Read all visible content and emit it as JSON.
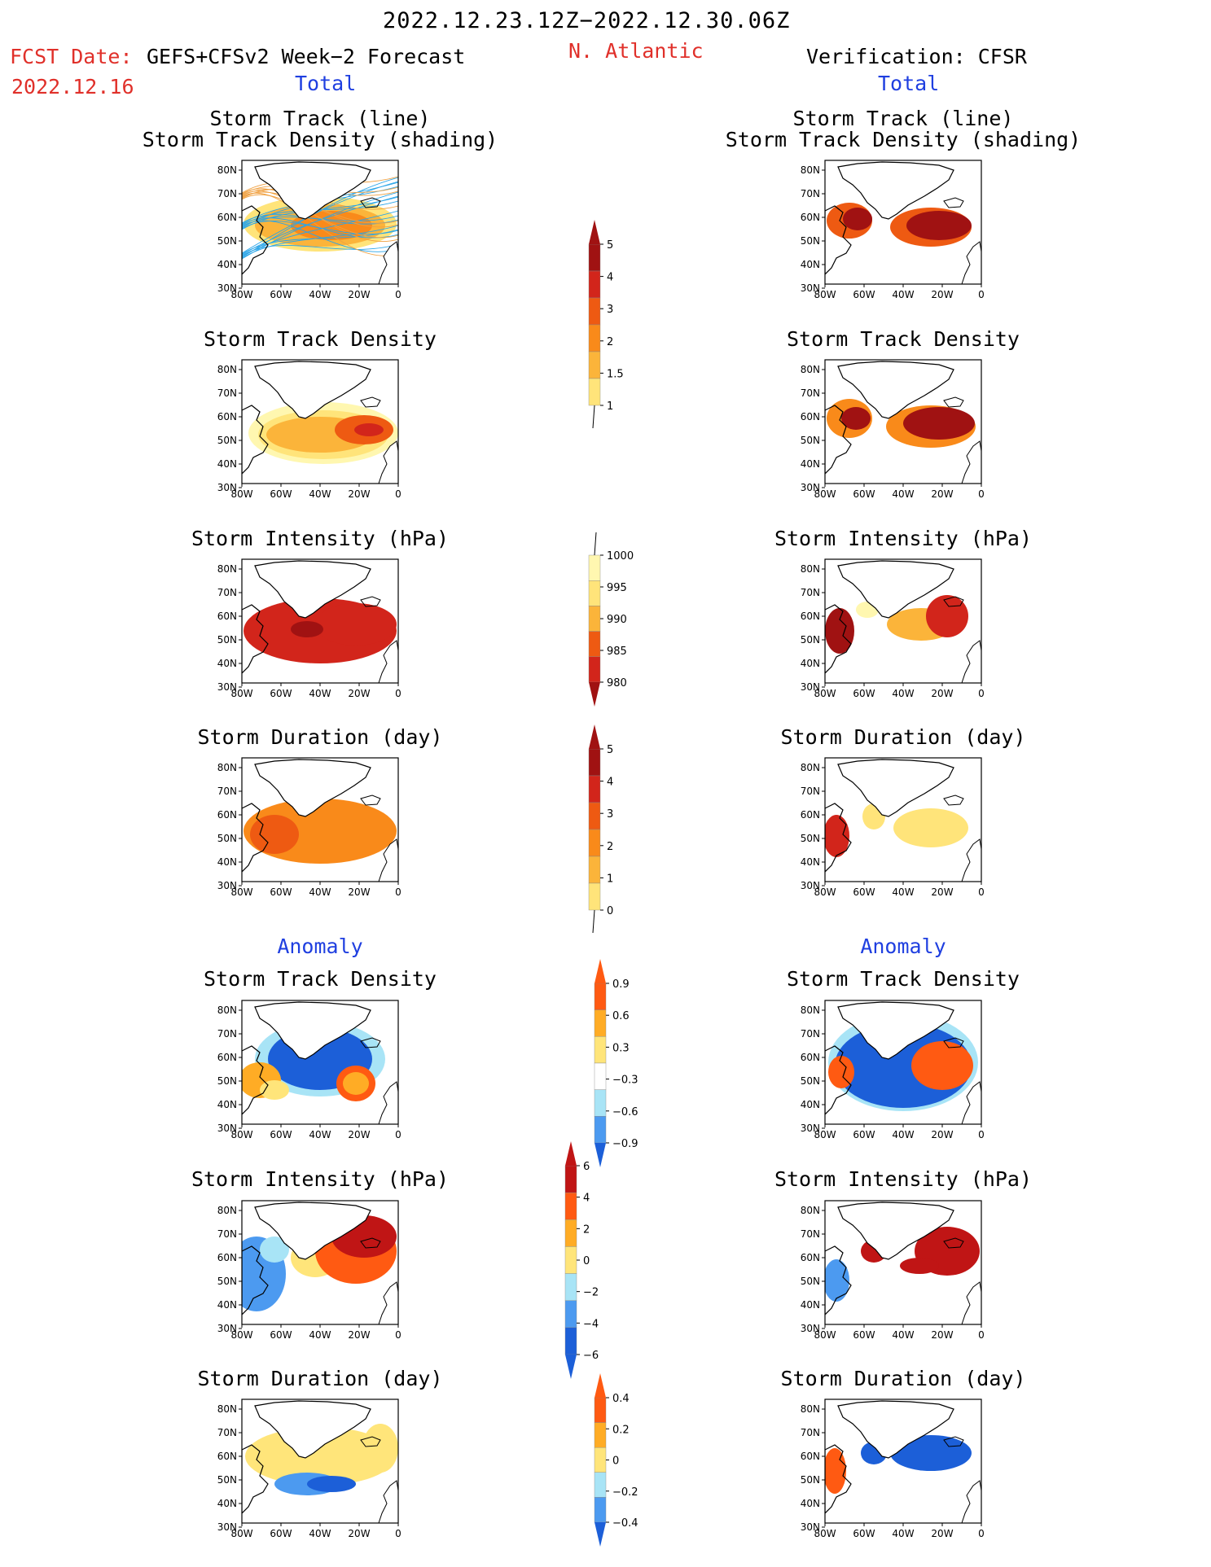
{
  "header": {
    "date_range": "2022.12.23.12Z−2022.12.30.06Z",
    "region": "N. Atlantic",
    "fcst_label": "FCST Date:",
    "fcst_model": "GEFS+CFSv2 Week−2 Forecast",
    "fcst_date": "2022.12.16",
    "verification": "Verification: CFSR",
    "left_total": "Total",
    "right_total": "Total",
    "left_anomaly": "Anomaly",
    "right_anomaly": "Anomaly"
  },
  "map_axes": {
    "lat_ticks": [
      "80N",
      "70N",
      "60N",
      "50N",
      "40N",
      "30N"
    ],
    "lon_ticks": [
      "80W",
      "60W",
      "40W",
      "20W",
      "0"
    ]
  },
  "colors": {
    "total_scale": [
      "#fff7b0",
      "#ffe47a",
      "#fbb43a",
      "#f98a1a",
      "#ee5a12",
      "#d2251b",
      "#a01212"
    ],
    "anomaly_scale": [
      "#1c5fd8",
      "#4c9af0",
      "#a8e4f6",
      "#ffffff",
      "#ffe57a",
      "#ffac25",
      "#ff5a12",
      "#c01515"
    ],
    "track_line": "#2aa5e8"
  },
  "panels": {
    "left_total_track": {
      "title1": "Storm Track (line)",
      "title2": "Storm Track Density (shading)"
    },
    "right_total_track": {
      "title1": "Storm Track (line)",
      "title2": "Storm Track Density (shading)"
    },
    "left_total_density": {
      "title": "Storm Track Density"
    },
    "right_total_density": {
      "title": "Storm Track Density"
    },
    "left_total_intensity": {
      "title": "Storm Intensity (hPa)"
    },
    "right_total_intensity": {
      "title": "Storm Intensity (hPa)"
    },
    "left_total_duration": {
      "title": "Storm Duration (day)"
    },
    "right_total_duration": {
      "title": "Storm Duration (day)"
    },
    "left_anom_density": {
      "title": "Storm Track Density"
    },
    "right_anom_density": {
      "title": "Storm Track Density"
    },
    "left_anom_intensity": {
      "title": "Storm Intensity (hPa)"
    },
    "right_anom_intensity": {
      "title": "Storm Intensity (hPa)"
    },
    "left_anom_duration": {
      "title": "Storm Duration (day)"
    },
    "right_anom_duration": {
      "title": "Storm Duration (day)"
    }
  },
  "chart_data": [
    {
      "type": "heatmap",
      "name": "density_total_colorbar",
      "levels": [
        "1",
        "1.5",
        "2",
        "3",
        "4",
        "5"
      ]
    },
    {
      "type": "heatmap",
      "name": "intensity_total_colorbar",
      "levels": [
        "1000",
        "995",
        "990",
        "985",
        "980"
      ]
    },
    {
      "type": "heatmap",
      "name": "duration_total_colorbar",
      "levels": [
        "0",
        "1",
        "2",
        "3",
        "4",
        "5"
      ]
    },
    {
      "type": "heatmap",
      "name": "density_anomaly_colorbar",
      "levels": [
        "0.9",
        "0.6",
        "0.3",
        "−0.3",
        "−0.6",
        "−0.9"
      ]
    },
    {
      "type": "heatmap",
      "name": "intensity_anomaly_colorbar",
      "levels": [
        "6",
        "4",
        "2",
        "0",
        "−2",
        "−4",
        "−6"
      ]
    },
    {
      "type": "heatmap",
      "name": "duration_anomaly_colorbar",
      "levels": [
        "0.4",
        "0.2",
        "0",
        "−0.2",
        "−0.4"
      ]
    }
  ]
}
